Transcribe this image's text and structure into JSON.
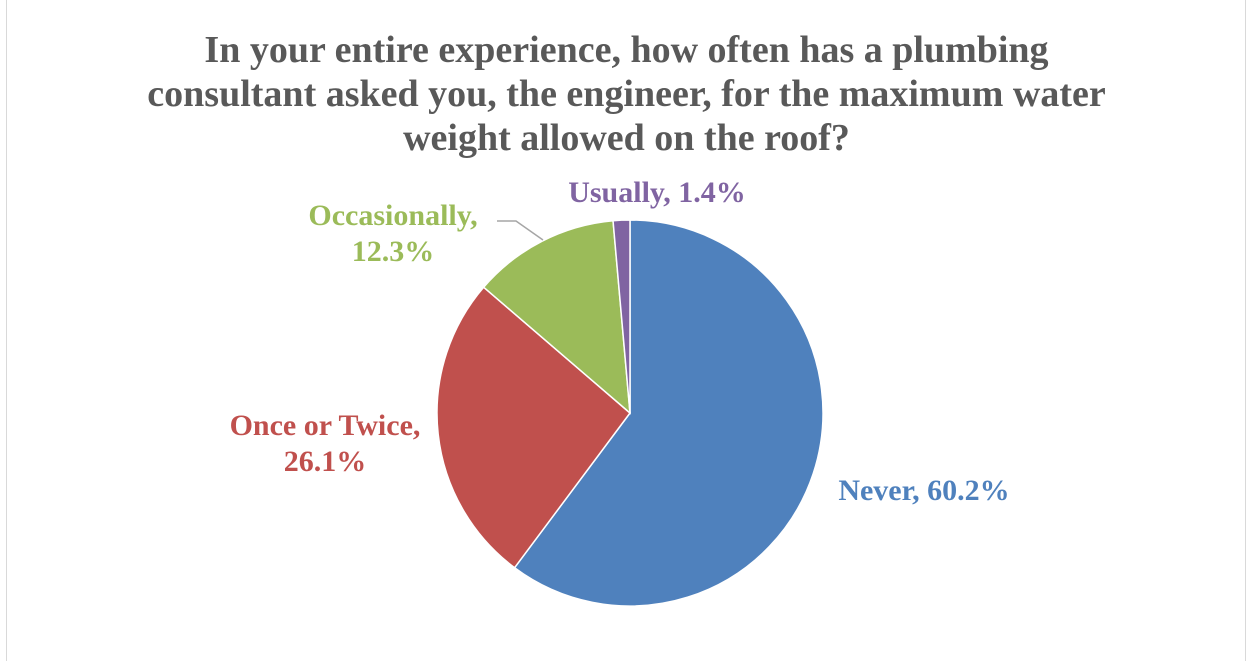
{
  "chart_data": {
    "type": "pie",
    "title_lines": [
      "In your entire experience, how often has a plumbing",
      "consultant asked you, the engineer, for the maximum water",
      "weight allowed on the roof?"
    ],
    "categories": [
      "Never",
      "Once or Twice",
      "Occasionally",
      "Usually"
    ],
    "values": [
      60.2,
      26.1,
      12.3,
      1.4
    ],
    "labels": [
      [
        "Never, 60.2%"
      ],
      [
        "Once or Twice,",
        "26.1%"
      ],
      [
        "Occasionally,",
        "12.3%"
      ],
      [
        "Usually, 1.4%"
      ]
    ],
    "colors": [
      "#4f81bd",
      "#c0504d",
      "#9bbb59",
      "#8064a2"
    ],
    "legend": "none",
    "data_labels": "outside-end"
  }
}
